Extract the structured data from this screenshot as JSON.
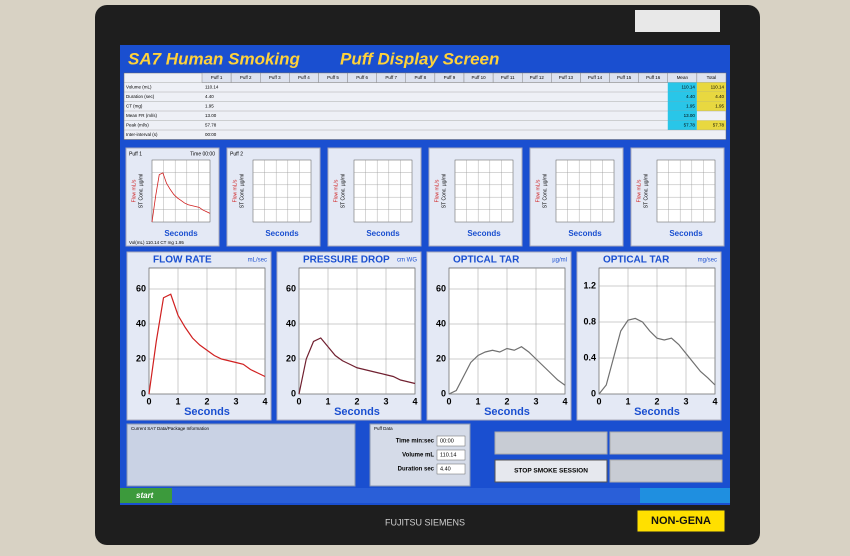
{
  "header": {
    "title": "SA7 Human Smoking",
    "subtitle": "Puff Display Screen"
  },
  "table": {
    "columns": [
      "Puff 1",
      "Puff 2",
      "Puff 3",
      "Puff 4",
      "Puff 5",
      "Puff 6",
      "Puff 7",
      "Puff 8",
      "Puff 9",
      "Puff 10",
      "Puff 11",
      "Puff 12",
      "Puff 13",
      "Puff 14",
      "Puff 15",
      "Puff 16",
      "Mean",
      "Total"
    ],
    "rows": [
      {
        "label": "Volume (mL)",
        "puff": "110.14",
        "mean": "110.14",
        "total": "110.14"
      },
      {
        "label": "Duration (sec)",
        "puff": "4.40",
        "mean": "4.40",
        "total": "4.40"
      },
      {
        "label": "CT (mg)",
        "puff": "1.95",
        "mean": "1.95",
        "total": "1.95"
      },
      {
        "label": "Mean FR (ml/s)",
        "puff": "13.00",
        "mean": "13.00"
      },
      {
        "label": "Peak (ml/s)",
        "puff": "57.78",
        "mean": "57.78",
        "total": "57.78"
      },
      {
        "label": "Inter-interval (s)",
        "puff": "00:00"
      }
    ]
  },
  "small_panels": {
    "titles": [
      "Puff 1",
      "Puff 2"
    ],
    "time": "Time 00:00",
    "y_label": "Flow mL/s",
    "y2_label": "ST Conc. µg/ml",
    "x_label": "Seconds",
    "footer": "Vol(mL) 110.14   CT mg 1.95"
  },
  "charts": [
    {
      "type": "line",
      "title": "FLOW RATE",
      "units": "mL/sec",
      "xlabel": "Seconds",
      "color": "#d02020",
      "xlim": [
        0,
        4
      ],
      "xticks": [
        0,
        1,
        2,
        3,
        4
      ],
      "ylim": [
        0,
        72
      ],
      "yticks": [
        0,
        20,
        40,
        60
      ],
      "x": [
        0,
        0.25,
        0.5,
        0.75,
        1,
        1.25,
        1.5,
        1.75,
        2,
        2.25,
        2.5,
        2.75,
        3,
        3.25,
        3.5,
        3.75,
        4
      ],
      "values": [
        0,
        30,
        55,
        57,
        45,
        38,
        32,
        28,
        25,
        22,
        20,
        19,
        18,
        17,
        14,
        12,
        10
      ]
    },
    {
      "type": "line",
      "title": "PRESSURE DROP",
      "units": "cm WG",
      "xlabel": "Seconds",
      "color": "#702030",
      "xlim": [
        0,
        4
      ],
      "xticks": [
        0,
        1,
        2,
        3,
        4
      ],
      "ylim": [
        0,
        72
      ],
      "yticks": [
        0,
        20,
        40,
        60
      ],
      "x": [
        0,
        0.25,
        0.5,
        0.75,
        1,
        1.25,
        1.5,
        1.75,
        2,
        2.25,
        2.5,
        2.75,
        3,
        3.25,
        3.5,
        3.75,
        4
      ],
      "values": [
        0,
        20,
        30,
        32,
        27,
        22,
        19,
        17,
        15,
        14,
        13,
        12,
        11,
        10,
        8,
        7,
        6
      ]
    },
    {
      "type": "line",
      "title": "OPTICAL TAR",
      "units": "µg/ml",
      "xlabel": "Seconds",
      "color": "#707070",
      "xlim": [
        0,
        4
      ],
      "xticks": [
        0,
        1,
        2,
        3,
        4
      ],
      "ylim": [
        0,
        72
      ],
      "yticks": [
        0,
        20,
        40,
        60
      ],
      "x": [
        0,
        0.25,
        0.5,
        0.75,
        1,
        1.25,
        1.5,
        1.75,
        2,
        2.25,
        2.5,
        2.75,
        3,
        3.25,
        3.5,
        3.75,
        4
      ],
      "values": [
        0,
        2,
        10,
        18,
        22,
        24,
        25,
        24,
        26,
        25,
        27,
        24,
        20,
        16,
        12,
        8,
        5
      ]
    },
    {
      "type": "line",
      "title": "OPTICAL TAR",
      "units": "mg/sec",
      "xlabel": "Seconds",
      "color": "#707070",
      "xlim": [
        0,
        4
      ],
      "xticks": [
        0,
        1,
        2,
        3,
        4
      ],
      "ylim": [
        0,
        1.4
      ],
      "yticks": [
        0,
        0.4,
        0.8,
        1.2
      ],
      "x": [
        0,
        0.25,
        0.5,
        0.75,
        1,
        1.25,
        1.5,
        1.75,
        2,
        2.25,
        2.5,
        2.75,
        3,
        3.25,
        3.5,
        3.75,
        4
      ],
      "values": [
        0,
        0.1,
        0.4,
        0.7,
        0.82,
        0.84,
        0.8,
        0.7,
        0.62,
        0.6,
        0.62,
        0.55,
        0.45,
        0.35,
        0.25,
        0.18,
        0.1
      ]
    }
  ],
  "bottom": {
    "info_title": "Current SA7 Data/Package Information",
    "puff_data_title": "Puff Data",
    "fields": [
      {
        "label": "Time min:sec",
        "value": "00:00"
      },
      {
        "label": "Volume mL",
        "value": "110.14"
      },
      {
        "label": "Duration sec",
        "value": "4.40"
      }
    ],
    "button": "STOP SMOKE SESSION"
  },
  "taskbar": {
    "start": "start"
  },
  "bezel": {
    "brand": "FUJITSU SIEMENS",
    "sticker": "NON-GENA"
  }
}
